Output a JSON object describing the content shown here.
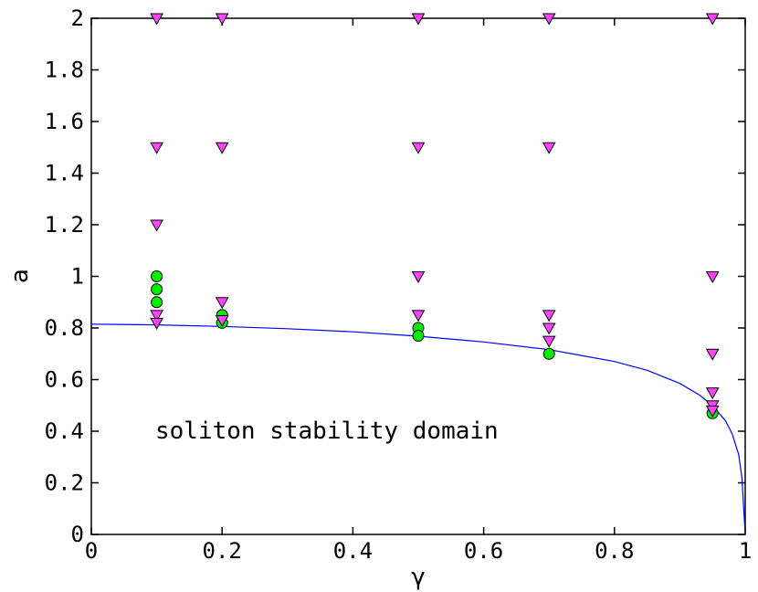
{
  "chart_data": {
    "type": "scatter",
    "title": "",
    "xlabel": "γ",
    "ylabel": "a",
    "xlim": [
      0,
      1
    ],
    "ylim": [
      0,
      2
    ],
    "xticks": [
      "0",
      "0.2",
      "0.4",
      "0.6",
      "0.8",
      "1"
    ],
    "xtick_values": [
      0,
      0.2,
      0.4,
      0.6,
      0.8,
      1
    ],
    "yticks": [
      "0",
      "0.2",
      "0.4",
      "0.6",
      "0.8",
      "1",
      "1.2",
      "1.4",
      "1.6",
      "1.8",
      "2"
    ],
    "ytick_values": [
      0,
      0.2,
      0.4,
      0.6,
      0.8,
      1,
      1.2,
      1.4,
      1.6,
      1.8,
      2
    ],
    "grid": false,
    "annotation": "soliton stability domain",
    "series": [
      {
        "name": "stability boundary",
        "kind": "line",
        "color": "#0000ff",
        "x": [
          0,
          0.1,
          0.2,
          0.3,
          0.4,
          0.5,
          0.6,
          0.7,
          0.8,
          0.85,
          0.9,
          0.93,
          0.95,
          0.97,
          0.98,
          0.99,
          0.995,
          1.0
        ],
        "y": [
          0.815,
          0.812,
          0.806,
          0.797,
          0.785,
          0.768,
          0.746,
          0.716,
          0.67,
          0.636,
          0.585,
          0.54,
          0.5,
          0.44,
          0.39,
          0.31,
          0.22,
          0.0
        ]
      },
      {
        "name": "stable",
        "kind": "marker",
        "marker": "circle",
        "color": "#00ee00",
        "x": [
          0.1,
          0.1,
          0.1,
          0.2,
          0.2,
          0.5,
          0.5,
          0.7,
          0.95
        ],
        "y": [
          1.0,
          0.95,
          0.9,
          0.85,
          0.82,
          0.8,
          0.77,
          0.7,
          0.47
        ]
      },
      {
        "name": "unstable",
        "kind": "marker",
        "marker": "triangle-down",
        "color": "#ff44ff",
        "x": [
          0.1,
          0.1,
          0.1,
          0.1,
          0.1,
          0.2,
          0.2,
          0.2,
          0.2,
          0.5,
          0.5,
          0.5,
          0.5,
          0.7,
          0.7,
          0.7,
          0.7,
          0.7,
          0.95,
          0.95,
          0.95,
          0.95,
          0.95,
          0.95
        ],
        "y": [
          2.0,
          1.5,
          1.2,
          0.85,
          0.82,
          2.0,
          1.5,
          0.9,
          0.83,
          2.0,
          1.5,
          1.0,
          0.85,
          2.0,
          1.5,
          0.85,
          0.8,
          0.75,
          2.0,
          1.0,
          0.7,
          0.55,
          0.5,
          0.48
        ]
      }
    ]
  }
}
